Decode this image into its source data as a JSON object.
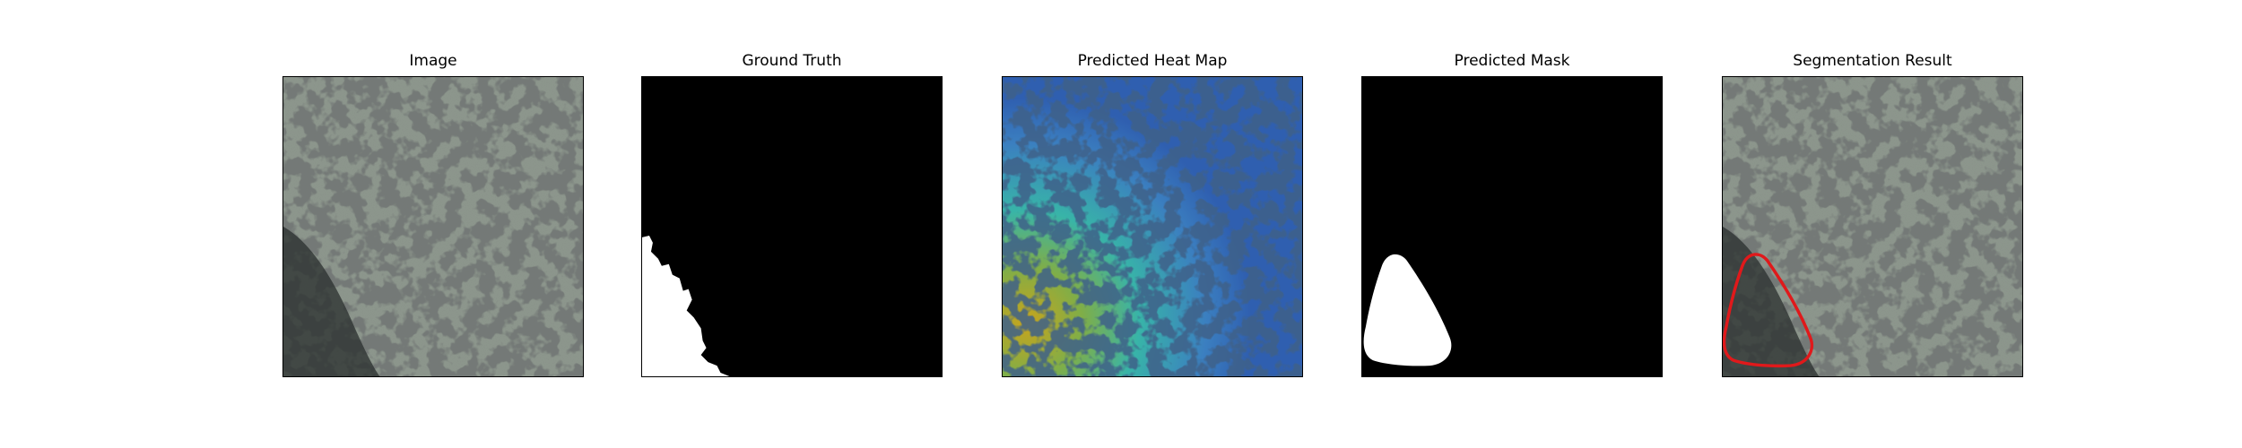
{
  "figure": {
    "panels": [
      {
        "title": "Image"
      },
      {
        "title": "Ground Truth"
      },
      {
        "title": "Predicted Heat Map"
      },
      {
        "title": "Predicted Mask"
      },
      {
        "title": "Segmentation Result"
      }
    ]
  },
  "colors": {
    "texture_base": "#8e998e",
    "texture_spot": "#2e3330",
    "mask_fg": "#ffffff",
    "mask_bg": "#000000",
    "heat_cool": "#2f5fb0",
    "heat_mid": "#38b4a8",
    "heat_hot": "#c8a41c",
    "contour": "#e0191b"
  }
}
